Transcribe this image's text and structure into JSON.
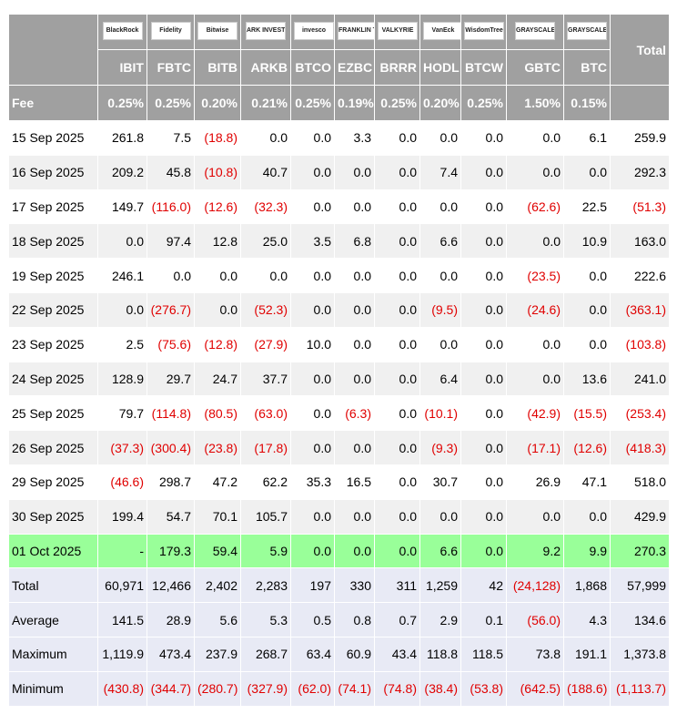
{
  "header": {
    "logos": [
      "BlackRock",
      "Fidelity",
      "Bitwise",
      "ARK INVEST",
      "invesco",
      "FRANKLIN TEMPLETON",
      "VALKYRIE",
      "VanEck",
      "WisdomTree",
      "GRAYSCALE",
      "GRAYSCALE"
    ],
    "tickers": [
      "IBIT",
      "FBTC",
      "BITB",
      "ARKB",
      "BTCO",
      "EZBC",
      "BRRR",
      "HODL",
      "BTCW",
      "GBTC",
      "BTC"
    ],
    "total": "Total"
  },
  "fee": {
    "label": "Fee",
    "values": [
      "0.25%",
      "0.25%",
      "0.20%",
      "0.21%",
      "0.25%",
      "0.19%",
      "0.25%",
      "0.20%",
      "0.25%",
      "1.50%",
      "0.15%"
    ]
  },
  "rows": [
    {
      "date": "15 Sep 2025",
      "cells": [
        "261.8",
        "7.5",
        "(18.8)",
        "0.0",
        "0.0",
        "3.3",
        "0.0",
        "0.0",
        "0.0",
        "0.0",
        "6.1",
        "259.9"
      ]
    },
    {
      "date": "16 Sep 2025",
      "cells": [
        "209.2",
        "45.8",
        "(10.8)",
        "40.7",
        "0.0",
        "0.0",
        "0.0",
        "7.4",
        "0.0",
        "0.0",
        "0.0",
        "292.3"
      ]
    },
    {
      "date": "17 Sep 2025",
      "cells": [
        "149.7",
        "(116.0)",
        "(12.6)",
        "(32.3)",
        "0.0",
        "0.0",
        "0.0",
        "0.0",
        "0.0",
        "(62.6)",
        "22.5",
        "(51.3)"
      ]
    },
    {
      "date": "18 Sep 2025",
      "cells": [
        "0.0",
        "97.4",
        "12.8",
        "25.0",
        "3.5",
        "6.8",
        "0.0",
        "6.6",
        "0.0",
        "0.0",
        "10.9",
        "163.0"
      ]
    },
    {
      "date": "19 Sep 2025",
      "cells": [
        "246.1",
        "0.0",
        "0.0",
        "0.0",
        "0.0",
        "0.0",
        "0.0",
        "0.0",
        "0.0",
        "(23.5)",
        "0.0",
        "222.6"
      ]
    },
    {
      "date": "22 Sep 2025",
      "cells": [
        "0.0",
        "(276.7)",
        "0.0",
        "(52.3)",
        "0.0",
        "0.0",
        "0.0",
        "(9.5)",
        "0.0",
        "(24.6)",
        "0.0",
        "(363.1)"
      ]
    },
    {
      "date": "23 Sep 2025",
      "cells": [
        "2.5",
        "(75.6)",
        "(12.8)",
        "(27.9)",
        "10.0",
        "0.0",
        "0.0",
        "0.0",
        "0.0",
        "0.0",
        "0.0",
        "(103.8)"
      ]
    },
    {
      "date": "24 Sep 2025",
      "cells": [
        "128.9",
        "29.7",
        "24.7",
        "37.7",
        "0.0",
        "0.0",
        "0.0",
        "6.4",
        "0.0",
        "0.0",
        "13.6",
        "241.0"
      ]
    },
    {
      "date": "25 Sep 2025",
      "cells": [
        "79.7",
        "(114.8)",
        "(80.5)",
        "(63.0)",
        "0.0",
        "(6.3)",
        "0.0",
        "(10.1)",
        "0.0",
        "(42.9)",
        "(15.5)",
        "(253.4)"
      ]
    },
    {
      "date": "26 Sep 2025",
      "cells": [
        "(37.3)",
        "(300.4)",
        "(23.8)",
        "(17.8)",
        "0.0",
        "0.0",
        "0.0",
        "(9.3)",
        "0.0",
        "(17.1)",
        "(12.6)",
        "(418.3)"
      ]
    },
    {
      "date": "29 Sep 2025",
      "cells": [
        "(46.6)",
        "298.7",
        "47.2",
        "62.2",
        "35.3",
        "16.5",
        "0.0",
        "30.7",
        "0.0",
        "26.9",
        "47.1",
        "518.0"
      ]
    },
    {
      "date": "30 Sep 2025",
      "cells": [
        "199.4",
        "54.7",
        "70.1",
        "105.7",
        "0.0",
        "0.0",
        "0.0",
        "0.0",
        "0.0",
        "0.0",
        "0.0",
        "429.9"
      ]
    },
    {
      "date": "01 Oct 2025",
      "color": "#99ff99",
      "cells": [
        "-",
        "179.3",
        "59.4",
        "5.9",
        "0.0",
        "0.0",
        "0.0",
        "6.6",
        "0.0",
        "9.2",
        "9.9",
        "270.3"
      ]
    }
  ],
  "summary": [
    {
      "label": "Total",
      "cells": [
        "60,971",
        "12,466",
        "2,402",
        "2,283",
        "197",
        "330",
        "311",
        "1,259",
        "42",
        "(24,128)",
        "1,868",
        "57,999"
      ]
    },
    {
      "label": "Average",
      "cells": [
        "141.5",
        "28.9",
        "5.6",
        "5.3",
        "0.5",
        "0.8",
        "0.7",
        "2.9",
        "0.1",
        "(56.0)",
        "4.3",
        "134.6"
      ]
    },
    {
      "label": "Maximum",
      "cells": [
        "1,119.9",
        "473.4",
        "237.9",
        "268.7",
        "63.4",
        "60.9",
        "43.4",
        "118.8",
        "118.5",
        "73.8",
        "191.1",
        "1,373.8"
      ]
    },
    {
      "label": "Minimum",
      "cells": [
        "(430.8)",
        "(344.7)",
        "(280.7)",
        "(327.9)",
        "(62.0)",
        "(74.1)",
        "(74.8)",
        "(38.4)",
        "(53.8)",
        "(642.5)",
        "(188.6)",
        "(1,113.7)"
      ]
    }
  ]
}
